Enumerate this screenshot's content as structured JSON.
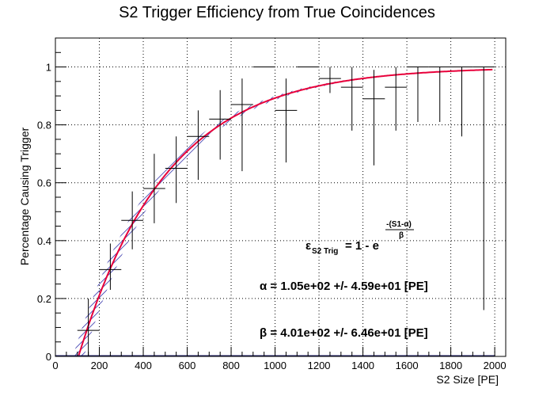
{
  "chart_data": {
    "type": "scatter",
    "title": "S2 Trigger Efficiency from True Coincidences",
    "xlabel": "S2 Size [PE]",
    "ylabel": "Percentage Causing Trigger",
    "xlim": [
      0,
      2050
    ],
    "ylim": [
      0,
      1.1
    ],
    "x_ticks": [
      0,
      200,
      400,
      600,
      800,
      1000,
      1200,
      1400,
      1600,
      1800,
      2000
    ],
    "y_ticks": [
      0,
      0.2,
      0.4,
      0.6,
      0.8,
      1
    ],
    "x_tick_labels": [
      "0",
      "200",
      "400",
      "600",
      "800",
      "1000",
      "1200",
      "1400",
      "1600",
      "1800",
      "2000"
    ],
    "y_tick_labels": [
      "0",
      "0.2",
      "0.4",
      "0.6",
      "0.8",
      "1"
    ],
    "grid": true,
    "series": [
      {
        "x": [
          50,
          150,
          250,
          350,
          450,
          550,
          650,
          750,
          850,
          950,
          1050,
          1150,
          1250,
          1350,
          1450,
          1550,
          1650,
          1750,
          1850,
          1950
        ],
        "y": [
          0,
          0.09,
          0.3,
          0.47,
          0.58,
          0.65,
          0.76,
          0.82,
          0.87,
          1.0,
          0.85,
          1.0,
          0.96,
          0.93,
          0.89,
          0.93,
          1.0,
          1.0,
          1.0,
          1.0
        ],
        "yerr_low": [
          0,
          0.09,
          0.07,
          0.1,
          0.12,
          0.12,
          0.15,
          0.14,
          0.23,
          0,
          0.18,
          0,
          0.05,
          0.15,
          0.23,
          0.15,
          0.19,
          0.19,
          0.24,
          0.84
        ],
        "yerr_high": [
          0,
          0.11,
          0.09,
          0.1,
          0.12,
          0.11,
          0.09,
          0.1,
          0.09,
          0,
          0.11,
          0,
          0.04,
          0.07,
          0.1,
          0.07,
          0,
          0,
          0,
          0
        ],
        "xerr": 50
      }
    ],
    "fit": {
      "alpha": 105,
      "beta": 401,
      "x_range": [
        105,
        1990
      ],
      "band_sigma_alpha": 45.9,
      "color": "#e8003a"
    },
    "annotations": {
      "formula_lhs": "ε",
      "formula_sub": "S2 Trig",
      "formula_mid": " = 1 - e",
      "formula_exp_num": "-(S1-α)",
      "formula_exp_den": "β",
      "alpha_line": "α = 1.05e+02 +/- 4.59e+01 [PE]",
      "beta_line": "β = 4.01e+02 +/- 6.46e+01 [PE]"
    },
    "colors": {
      "fit_line": "#e8003a",
      "band_hatch": "#1a1aa0",
      "points": "#000000",
      "grid": "#000000"
    }
  }
}
